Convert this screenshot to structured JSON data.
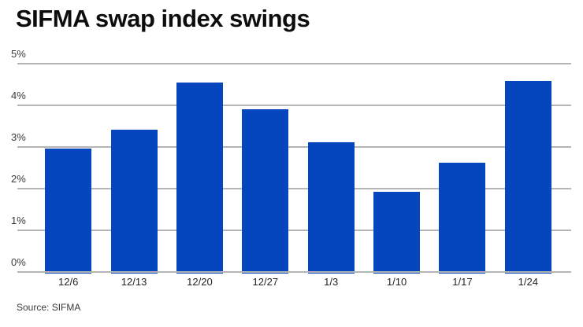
{
  "page": {
    "title": "SIFMA swap index swings",
    "source": "Source: SIFMA"
  },
  "chart_data": {
    "type": "bar",
    "title": "SIFMA swap index swings",
    "categories": [
      "12/6",
      "12/13",
      "12/20",
      "12/27",
      "1/3",
      "1/10",
      "1/17",
      "1/24"
    ],
    "values": [
      2.95,
      3.4,
      4.53,
      3.88,
      3.1,
      1.9,
      2.6,
      4.56
    ],
    "unit": "%",
    "xlabel": "",
    "ylabel": "",
    "ylim": [
      0,
      5
    ],
    "y_ticks": [
      {
        "value": 5,
        "label": "5%"
      },
      {
        "value": 4,
        "label": "4%"
      },
      {
        "value": 3,
        "label": "3%"
      },
      {
        "value": 2,
        "label": "2%"
      },
      {
        "value": 1,
        "label": "1%"
      },
      {
        "value": 0,
        "label": "0%"
      }
    ],
    "grid": "horizontal",
    "legend": "none",
    "bar_color": "#0545bd",
    "gridline_color": "#b5b5b5",
    "source": "Source: SIFMA"
  },
  "colors": {
    "background": "#ffffff",
    "bar": "#0545bd",
    "gridline": "#b5b5b5",
    "title_text": "#0d0d0d",
    "axis_text": "#3a3a3a"
  }
}
